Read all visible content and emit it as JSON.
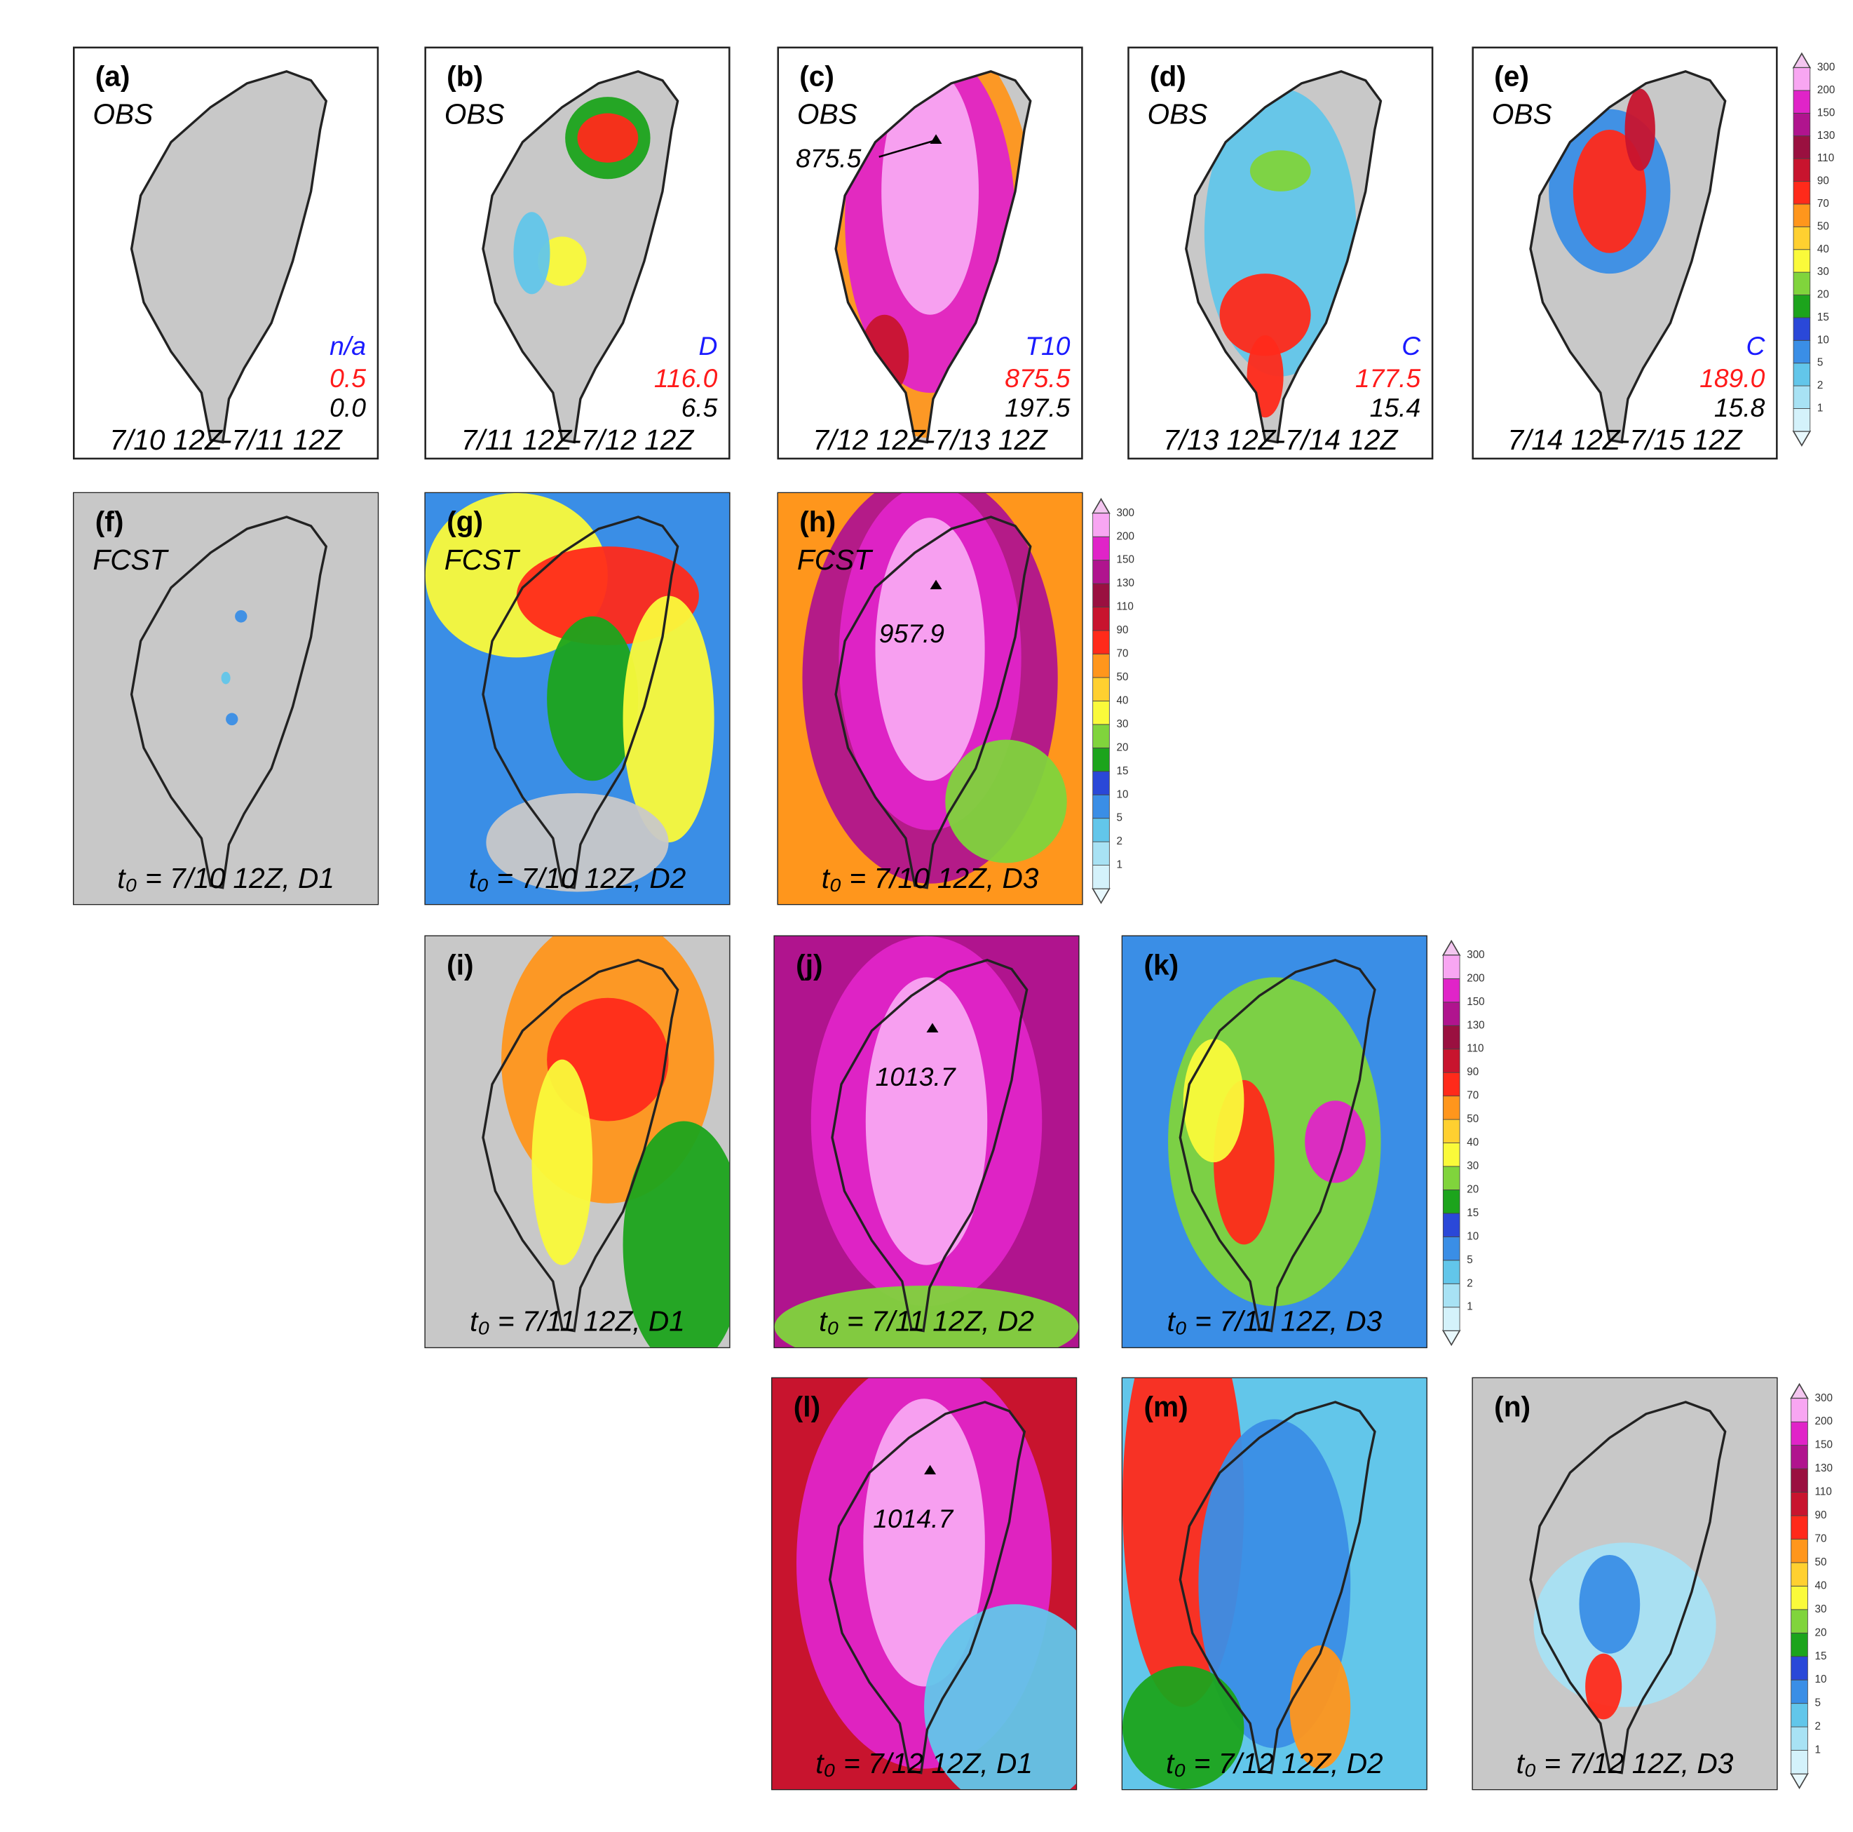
{
  "panels": [
    {
      "label": "(a)",
      "kind": "OBS",
      "source": "n/a",
      "max": "0.5",
      "mean": "0.0",
      "period": "7/10 12Z-7/11 12Z"
    },
    {
      "label": "(b)",
      "kind": "OBS",
      "source": "D",
      "max": "116.0",
      "mean": "6.5",
      "period": "7/11 12Z-7/12 12Z"
    },
    {
      "label": "(c)",
      "kind": "OBS",
      "source": "T10",
      "max": "875.5",
      "mean": "197.5",
      "period": "7/12 12Z-7/13 12Z",
      "peak": "875.5"
    },
    {
      "label": "(d)",
      "kind": "OBS",
      "source": "C",
      "max": "177.5",
      "mean": "15.4",
      "period": "7/13 12Z-7/14 12Z"
    },
    {
      "label": "(e)",
      "kind": "OBS",
      "source": "C",
      "max": "189.0",
      "mean": "15.8",
      "period": "7/14 12Z-7/15 12Z"
    },
    {
      "label": "(f)",
      "kind": "FCST",
      "init": "t₀ = 7/10 12Z, D1"
    },
    {
      "label": "(g)",
      "kind": "FCST",
      "init": "t₀ = 7/10 12Z, D2"
    },
    {
      "label": "(h)",
      "kind": "FCST",
      "init": "t₀ = 7/10 12Z, D3",
      "peak": "957.9"
    },
    {
      "label": "(i)",
      "init": "t₀ = 7/11 12Z, D1"
    },
    {
      "label": "(j)",
      "init": "t₀ = 7/11 12Z, D2",
      "peak": "1013.7"
    },
    {
      "label": "(k)",
      "init": "t₀ = 7/11 12Z, D3"
    },
    {
      "label": "(l)",
      "init": "t₀ = 7/12 12Z, D1",
      "peak": "1014.7"
    },
    {
      "label": "(m)",
      "init": "t₀ = 7/12 12Z, D2"
    },
    {
      "label": "(n)",
      "init": "t₀ = 7/12 12Z, D3"
    }
  ],
  "colorbar": {
    "labels": [
      "1",
      "2",
      "5",
      "10",
      "15",
      "20",
      "30",
      "40",
      "50",
      "70",
      "90",
      "110",
      "130",
      "150",
      "200",
      "300"
    ]
  }
}
